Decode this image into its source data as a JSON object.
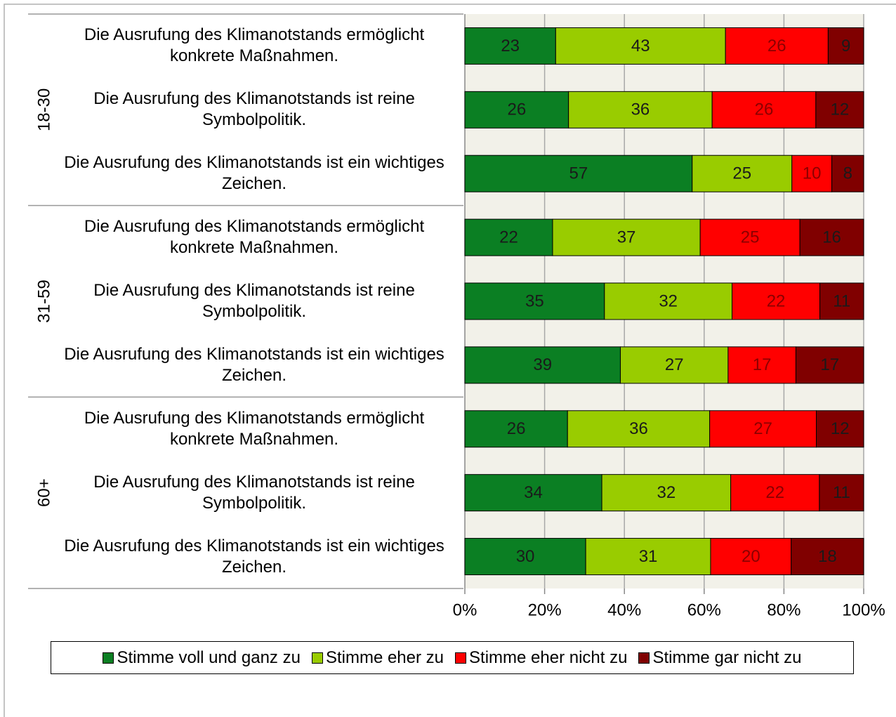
{
  "chart_data": {
    "type": "percentbar",
    "groups": [
      "18-30",
      "31-59",
      "60+"
    ],
    "categories": [
      "Die Ausrufung des Klimanotstands ermöglicht konkrete Maßnahmen.",
      "Die Ausrufung des Klimanotstands ist reine Symbolpolitik.",
      "Die Ausrufung des Klimanotstands ist ein wichtiges Zeichen.",
      "Die Ausrufung des Klimanotstands ermöglicht konkrete Maßnahmen.",
      "Die Ausrufung des Klimanotstands ist reine Symbolpolitik.",
      "Die Ausrufung des Klimanotstands ist ein wichtiges Zeichen.",
      "Die Ausrufung des Klimanotstands ermöglicht konkrete Maßnahmen.",
      "Die Ausrufung des Klimanotstands ist reine Symbolpolitik.",
      "Die Ausrufung des Klimanotstands ist ein wichtiges Zeichen."
    ],
    "series": [
      {
        "name": "Stimme voll und ganz zu",
        "color": "#0b7f23",
        "label_color": "#1a1a1a",
        "values": [
          23,
          26,
          57,
          22,
          35,
          39,
          26,
          34,
          30
        ]
      },
      {
        "name": "Stimme eher zu",
        "color": "#99cc00",
        "label_color": "#1a1a1a",
        "values": [
          43,
          36,
          25,
          37,
          32,
          27,
          36,
          32,
          31
        ]
      },
      {
        "name": "Stimme eher nicht zu",
        "color": "#ff0000",
        "label_color": "#8b0000",
        "values": [
          26,
          26,
          10,
          25,
          22,
          17,
          27,
          22,
          20
        ]
      },
      {
        "name": "Stimme gar nicht zu",
        "color": "#800000",
        "label_color": "#1a1a1a",
        "values": [
          9,
          12,
          8,
          16,
          11,
          17,
          12,
          11,
          18
        ]
      }
    ],
    "xlim": [
      0,
      100
    ],
    "xticks": [
      {
        "value": 0,
        "label": "0%"
      },
      {
        "value": 20,
        "label": "20%"
      },
      {
        "value": 40,
        "label": "40%"
      },
      {
        "value": 60,
        "label": "60%"
      },
      {
        "value": 80,
        "label": "80%"
      },
      {
        "value": 100,
        "label": "100%"
      }
    ],
    "grid": true,
    "legend": "bottom"
  }
}
